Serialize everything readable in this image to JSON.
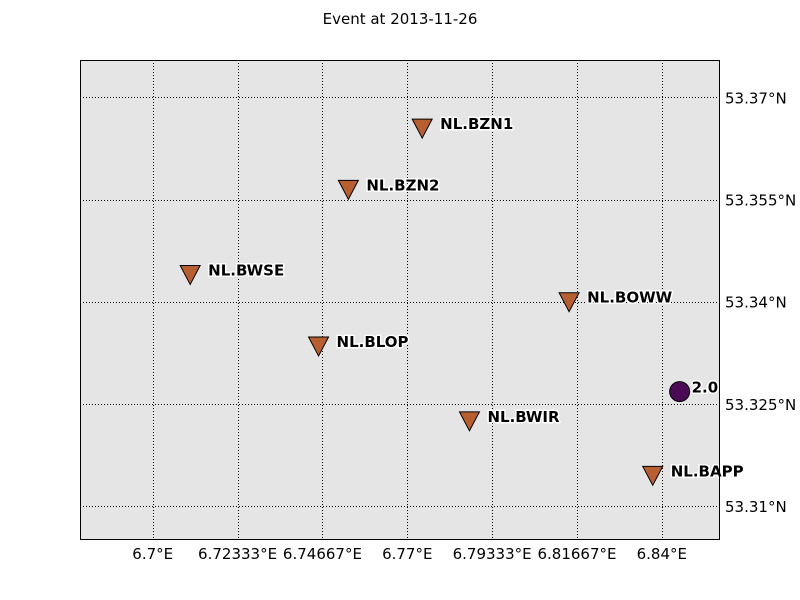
{
  "title": "Event at 2013-11-26",
  "chart_data": {
    "type": "scatter",
    "title": "Event at 2013-11-26",
    "xlim": [
      6.68,
      6.856
    ],
    "ylim": [
      53.305,
      53.3755
    ],
    "grid": true,
    "x_ticks": [
      {
        "value": 6.7,
        "label": "6.7°E"
      },
      {
        "value": 6.72333,
        "label": "6.72333°E"
      },
      {
        "value": 6.74667,
        "label": "6.74667°E"
      },
      {
        "value": 6.77,
        "label": "6.77°E"
      },
      {
        "value": 6.79333,
        "label": "6.79333°E"
      },
      {
        "value": 6.81667,
        "label": "6.81667°E"
      },
      {
        "value": 6.84,
        "label": "6.84°E"
      }
    ],
    "y_ticks": [
      {
        "value": 53.31,
        "label": "53.31°N"
      },
      {
        "value": 53.325,
        "label": "53.325°N"
      },
      {
        "value": 53.34,
        "label": "53.34°N"
      },
      {
        "value": 53.355,
        "label": "53.355°N"
      },
      {
        "value": 53.37,
        "label": "53.37°N"
      }
    ],
    "stations": [
      {
        "name": "NL.BZN1",
        "lon": 6.7741,
        "lat": 53.3655
      },
      {
        "name": "NL.BZN2",
        "lon": 6.7538,
        "lat": 53.3565
      },
      {
        "name": "NL.BWSE",
        "lon": 6.7103,
        "lat": 53.344
      },
      {
        "name": "NL.BOWW",
        "lon": 6.8145,
        "lat": 53.34
      },
      {
        "name": "NL.BLOP",
        "lon": 6.7456,
        "lat": 53.3335
      },
      {
        "name": "NL.BWIR",
        "lon": 6.7871,
        "lat": 53.3225
      },
      {
        "name": "NL.BAPP",
        "lon": 6.8375,
        "lat": 53.3145
      }
    ],
    "events": [
      {
        "label": "2.0",
        "lon": 6.8449,
        "lat": 53.3268
      }
    ],
    "colors": {
      "background": "#e5e5e5",
      "station": "#b85f31",
      "event": "#4b0a55",
      "grid": "#000000"
    }
  }
}
